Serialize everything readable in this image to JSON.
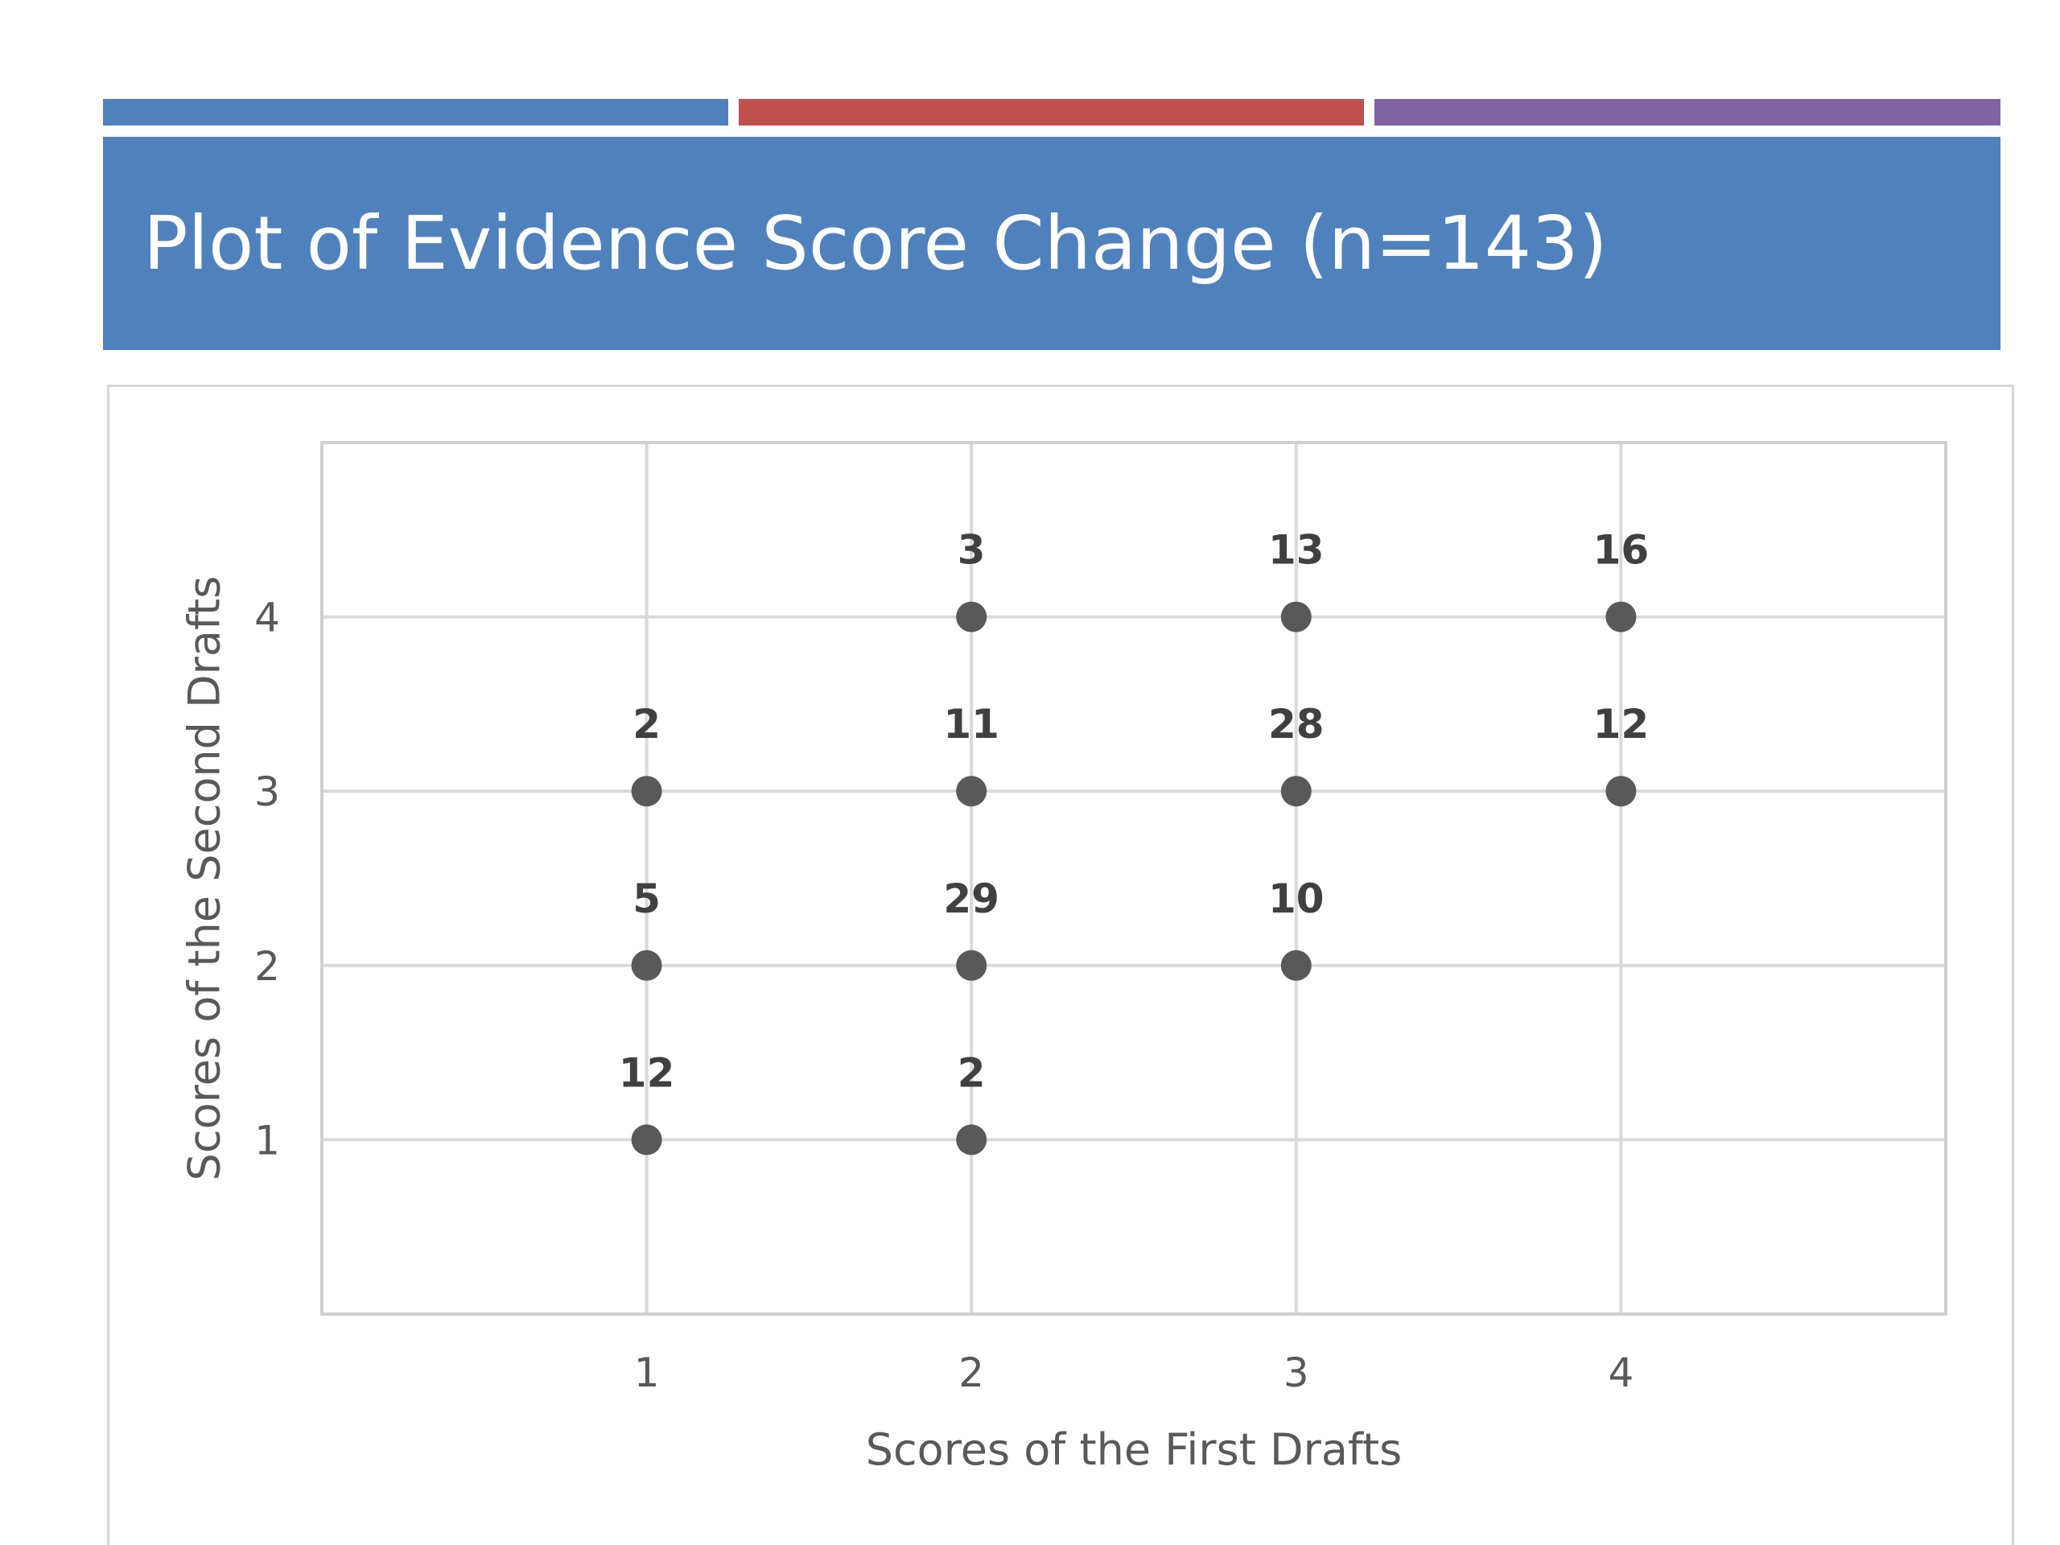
{
  "slide": {
    "title": "Plot of Evidence Score Change (n=143)",
    "accent_bars": [
      "#4f81bd",
      "#c0504d",
      "#8064a2"
    ],
    "title_band_color": "#4f81bd"
  },
  "chart_data": {
    "type": "scatter",
    "title": "",
    "xlabel": "Scores of the First Drafts",
    "ylabel": "Scores of the Second Drafts",
    "xlim": [
      0,
      5
    ],
    "ylim": [
      0,
      5
    ],
    "xticks": [
      1,
      2,
      3,
      4
    ],
    "yticks": [
      1,
      2,
      3,
      4
    ],
    "grid": true,
    "marker_color": "#595959",
    "points": [
      {
        "x": 1,
        "y": 1,
        "label": "12"
      },
      {
        "x": 1,
        "y": 2,
        "label": "5"
      },
      {
        "x": 1,
        "y": 3,
        "label": "2"
      },
      {
        "x": 2,
        "y": 1,
        "label": "2"
      },
      {
        "x": 2,
        "y": 2,
        "label": "29"
      },
      {
        "x": 2,
        "y": 3,
        "label": "11"
      },
      {
        "x": 2,
        "y": 4,
        "label": "3"
      },
      {
        "x": 3,
        "y": 2,
        "label": "10"
      },
      {
        "x": 3,
        "y": 3,
        "label": "28"
      },
      {
        "x": 3,
        "y": 4,
        "label": "13"
      },
      {
        "x": 4,
        "y": 3,
        "label": "12"
      },
      {
        "x": 4,
        "y": 4,
        "label": "16"
      }
    ]
  }
}
